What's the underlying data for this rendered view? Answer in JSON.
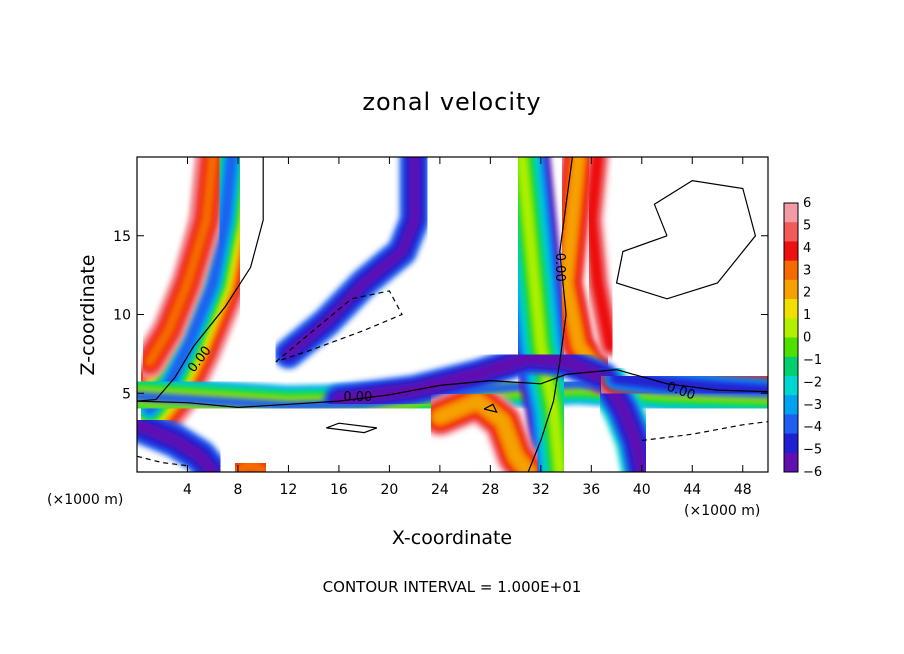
{
  "chart_data": {
    "type": "heatmap",
    "title": "zonal velocity",
    "xlabel": "X-coordinate",
    "ylabel": "Z-coordinate",
    "x_unit_label": "(×1000 m)",
    "x_unit_label_right": "(×1000 m)",
    "xlim": [
      0,
      50
    ],
    "ylim": [
      0,
      20
    ],
    "xticks": [
      4,
      8,
      12,
      16,
      20,
      24,
      28,
      32,
      36,
      40,
      44,
      48
    ],
    "yticks": [
      5,
      10,
      15
    ],
    "colorbar": {
      "ticks": [
        6,
        5,
        4,
        3,
        2,
        1,
        0,
        -1,
        -2,
        -3,
        -4,
        -5,
        -6
      ],
      "colors": [
        "#f29ba4",
        "#f25a5a",
        "#ee1010",
        "#f56a00",
        "#f5a200",
        "#f0e000",
        "#b2f000",
        "#4fe000",
        "#00d070",
        "#00d6d0",
        "#00a2f0",
        "#1e5ef0",
        "#2020d0",
        "#6010b0"
      ],
      "range": [
        -6,
        6
      ]
    },
    "contour_label": "0.00",
    "footer": "CONTOUR INTERVAL = 1.000E+01"
  }
}
